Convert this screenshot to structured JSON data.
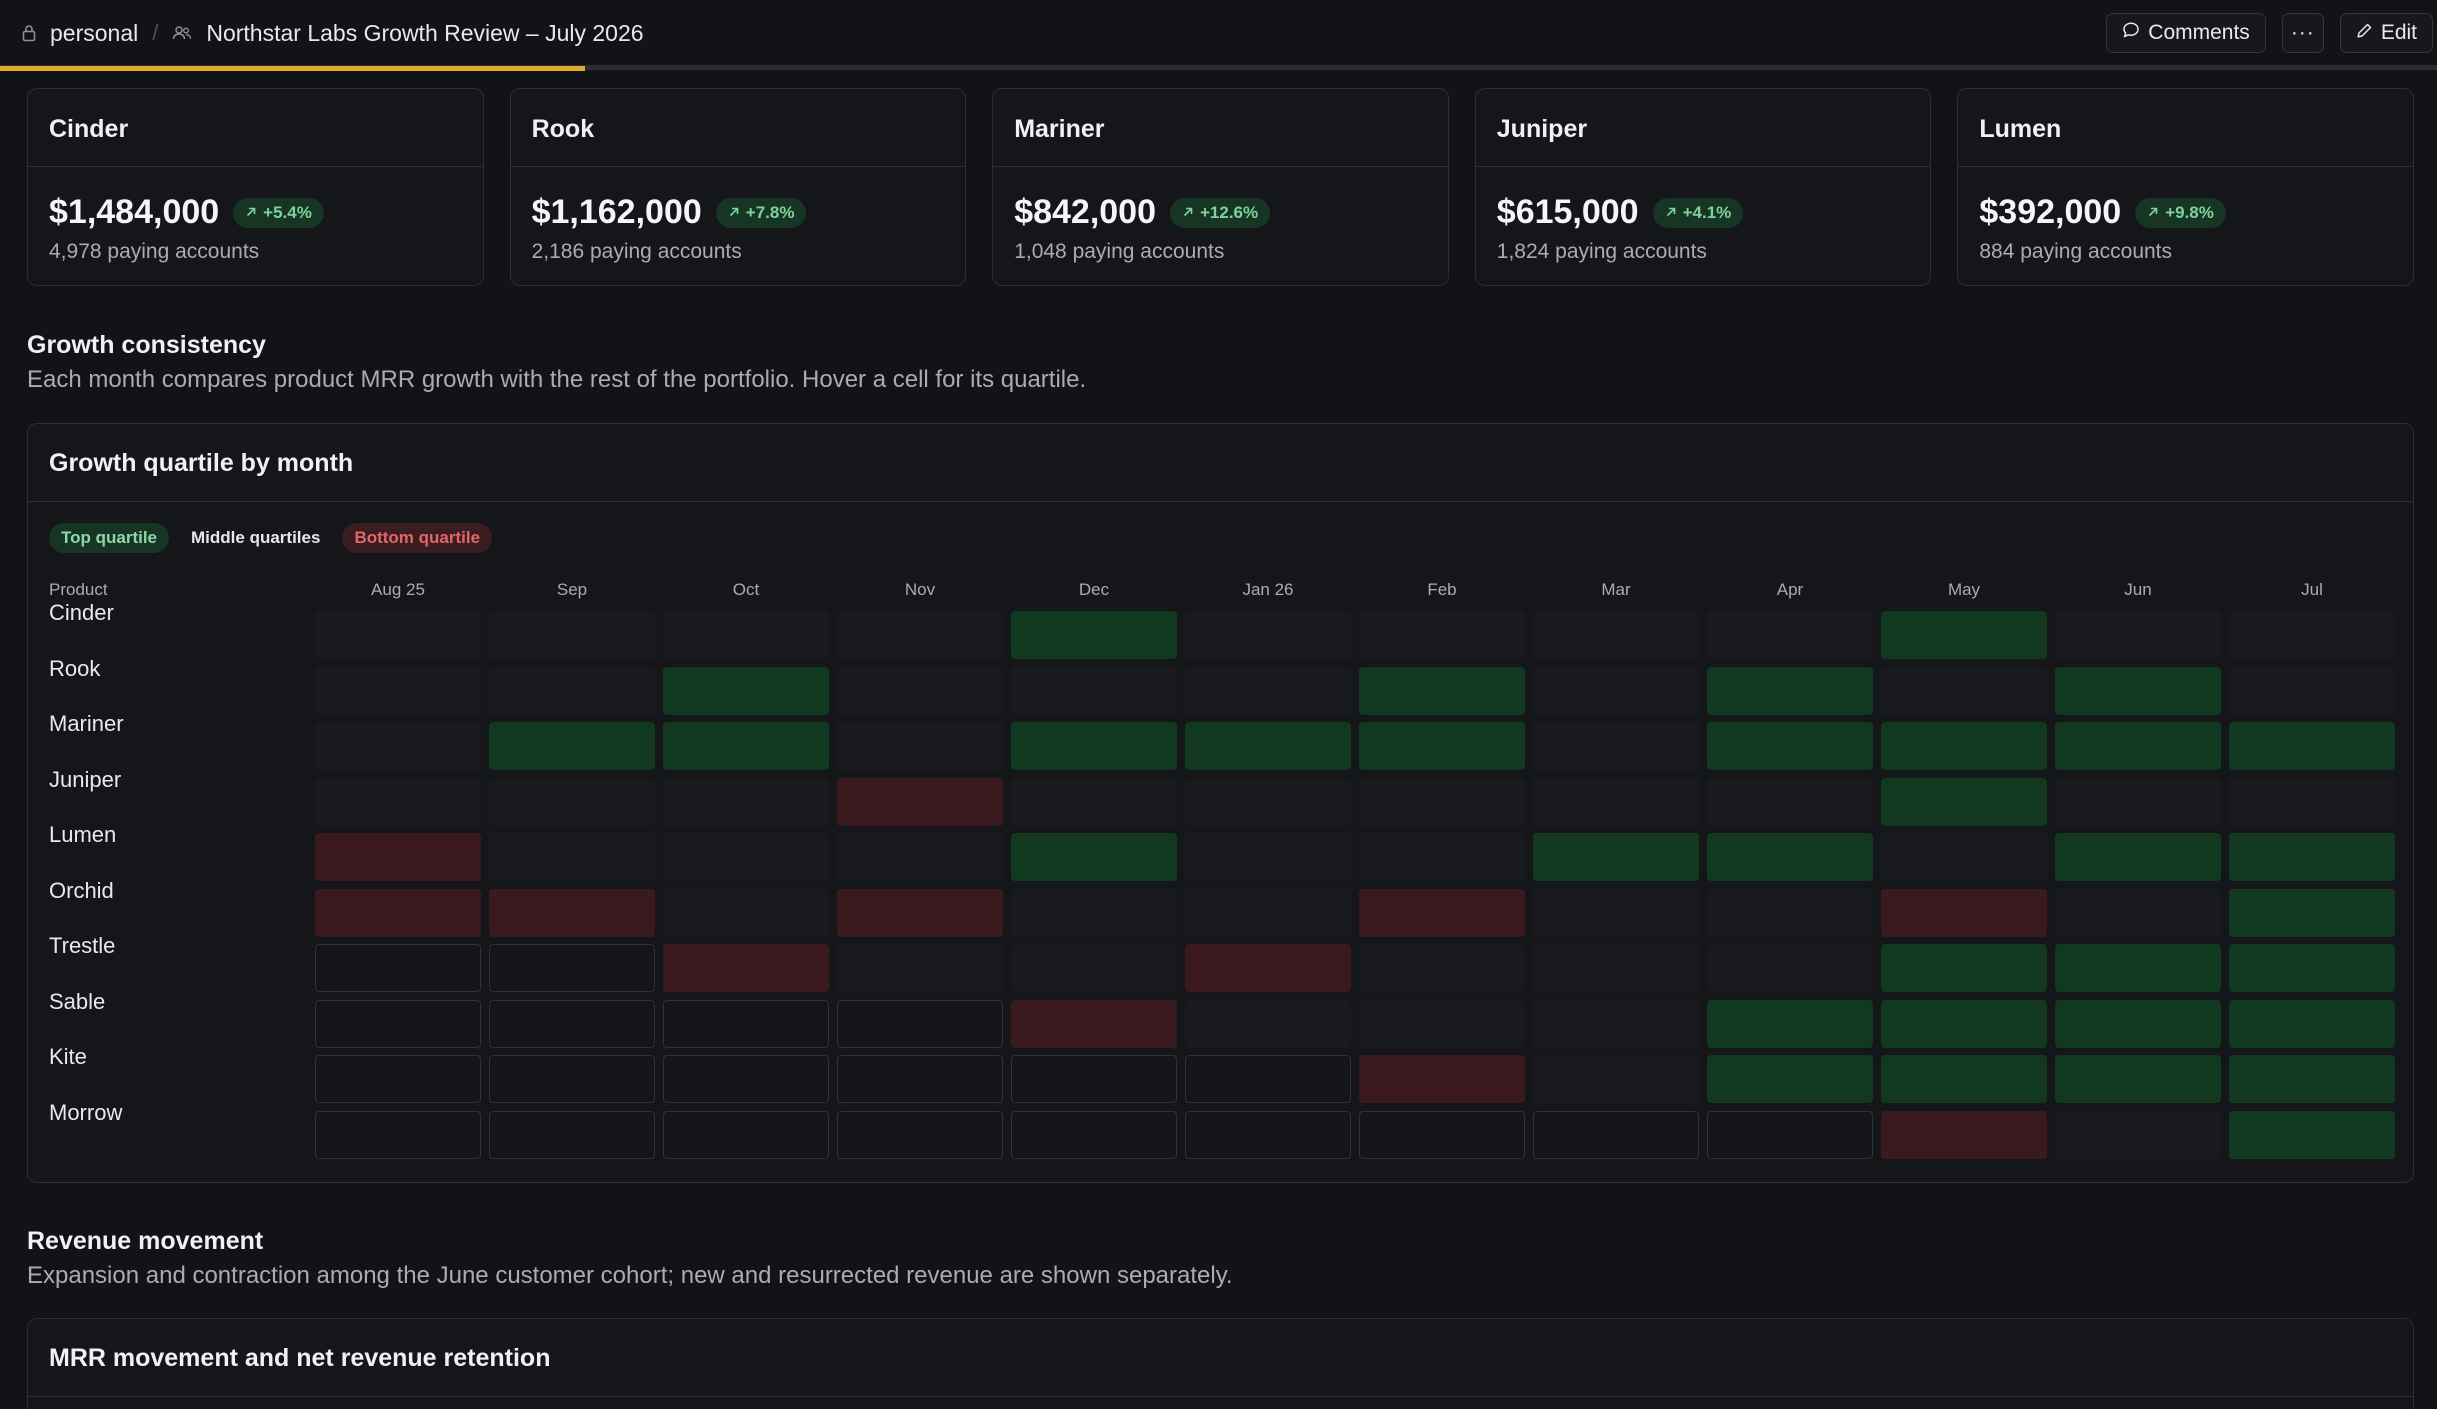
{
  "breadcrumb": {
    "workspace": "personal",
    "separator": "/",
    "document": "Northstar Labs Growth Review – July 2026"
  },
  "toolbar": {
    "comments_label": "Comments",
    "more_label": "···",
    "edit_label": "Edit"
  },
  "progress": {
    "fraction": 0.2
  },
  "metrics": [
    {
      "name": "Cinder",
      "value": "$1,484,000",
      "delta": "+5.4%",
      "accounts": "4,978 paying accounts"
    },
    {
      "name": "Rook",
      "value": "$1,162,000",
      "delta": "+7.8%",
      "accounts": "2,186 paying accounts"
    },
    {
      "name": "Mariner",
      "value": "$842,000",
      "delta": "+12.6%",
      "accounts": "1,048 paying accounts"
    },
    {
      "name": "Juniper",
      "value": "$615,000",
      "delta": "+4.1%",
      "accounts": "1,824 paying accounts"
    },
    {
      "name": "Lumen",
      "value": "$392,000",
      "delta": "+9.8%",
      "accounts": "884 paying accounts"
    }
  ],
  "growth": {
    "title": "Growth consistency",
    "description": "Each month compares product MRR growth with the rest of the portfolio. Hover a cell for its quartile.",
    "panel_title": "Growth quartile by month",
    "legend": {
      "top": "Top quartile",
      "mid": "Middle quartiles",
      "bottom": "Bottom quartile"
    },
    "product_header": "Product",
    "months": [
      "Aug 25",
      "Sep",
      "Oct",
      "Nov",
      "Dec",
      "Jan 26",
      "Feb",
      "Mar",
      "Apr",
      "May",
      "Jun",
      "Jul"
    ],
    "products": [
      "Cinder",
      "Rook",
      "Mariner",
      "Juniper",
      "Lumen",
      "Orchid",
      "Trestle",
      "Sable",
      "Kite",
      "Morrow"
    ],
    "quartiles": [
      [
        "mid",
        "mid",
        "mid",
        "mid",
        "top",
        "mid",
        "mid",
        "mid",
        "mid",
        "top",
        "mid",
        "mid"
      ],
      [
        "mid",
        "mid",
        "top",
        "mid",
        "mid",
        "mid",
        "top",
        "mid",
        "top",
        "mid",
        "top",
        "mid"
      ],
      [
        "mid",
        "top",
        "top",
        "mid",
        "top",
        "top",
        "top",
        "mid",
        "top",
        "top",
        "top",
        "top"
      ],
      [
        "mid",
        "mid",
        "mid",
        "bottom",
        "mid",
        "mid",
        "mid",
        "mid",
        "mid",
        "top",
        "mid",
        "mid"
      ],
      [
        "bottom",
        "mid",
        "mid",
        "mid",
        "top",
        "mid",
        "mid",
        "top",
        "top",
        "mid",
        "top",
        "top"
      ],
      [
        "bottom",
        "bottom",
        "mid",
        "bottom",
        "mid",
        "mid",
        "bottom",
        "mid",
        "mid",
        "bottom",
        "mid",
        "top"
      ],
      [
        "empty",
        "empty",
        "bottom",
        "mid",
        "mid",
        "bottom",
        "mid",
        "mid",
        "mid",
        "top",
        "top",
        "top"
      ],
      [
        "empty",
        "empty",
        "empty",
        "empty",
        "bottom",
        "mid",
        "mid",
        "mid",
        "top",
        "top",
        "top",
        "top"
      ],
      [
        "empty",
        "empty",
        "empty",
        "empty",
        "empty",
        "empty",
        "bottom",
        "mid",
        "top",
        "top",
        "top",
        "top"
      ],
      [
        "empty",
        "empty",
        "empty",
        "empty",
        "empty",
        "empty",
        "empty",
        "empty",
        "empty",
        "bottom",
        "mid",
        "top"
      ]
    ]
  },
  "revenue": {
    "title": "Revenue movement",
    "description": "Expansion and contraction among the June customer cohort; new and resurrected revenue are shown separately.",
    "panel_title": "MRR movement and net revenue retention"
  },
  "colors": {
    "accent": "#e2a72e",
    "top_quartile": "#10391f",
    "bottom_quartile": "#3a1a1e",
    "middle_quartile": "#191a1e",
    "positive_text": "#7fd39a"
  },
  "icons": {
    "workspace": "lock-icon",
    "document": "people-icon",
    "comments": "comment-icon",
    "edit": "pencil-icon",
    "delta": "arrow-up-right-icon"
  }
}
